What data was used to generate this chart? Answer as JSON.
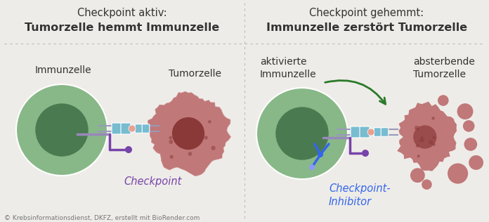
{
  "bg_color": "#eeece8",
  "title_left_line1": "Checkpoint aktiv:",
  "title_left_line2": "Tumorzelle hemmt Immunzelle",
  "title_right_line1": "Checkpoint gehemmt:",
  "title_right_line2": "Immunzelle zerstört Tumorzelle",
  "label_immunzelle_left": "Immunzelle",
  "label_tumorzelle_left": "Tumorzelle",
  "label_immunzelle_right": "aktivierte\nImmunzelle",
  "label_tumorzelle_right": "absterbende\nTumorzelle",
  "label_checkpoint": "Checkpoint",
  "label_inhibitor": "Checkpoint-\nInhibitor",
  "copyright": "© Krebsinformationsdienst, DKFZ, erstellt mit BioRender.com",
  "immune_outer": "#88b888",
  "immune_inner": "#4a7a50",
  "tumor_outer": "#c07878",
  "tumor_inner": "#8a3838",
  "receptor_blue": "#78bcd0",
  "receptor_orange": "#e8a090",
  "checkpoint_color": "#7744aa",
  "inhibitor_color": "#3366ee",
  "arrow_color": "#2a7a2a",
  "divider_color": "#bbbbbb",
  "text_color": "#333333"
}
